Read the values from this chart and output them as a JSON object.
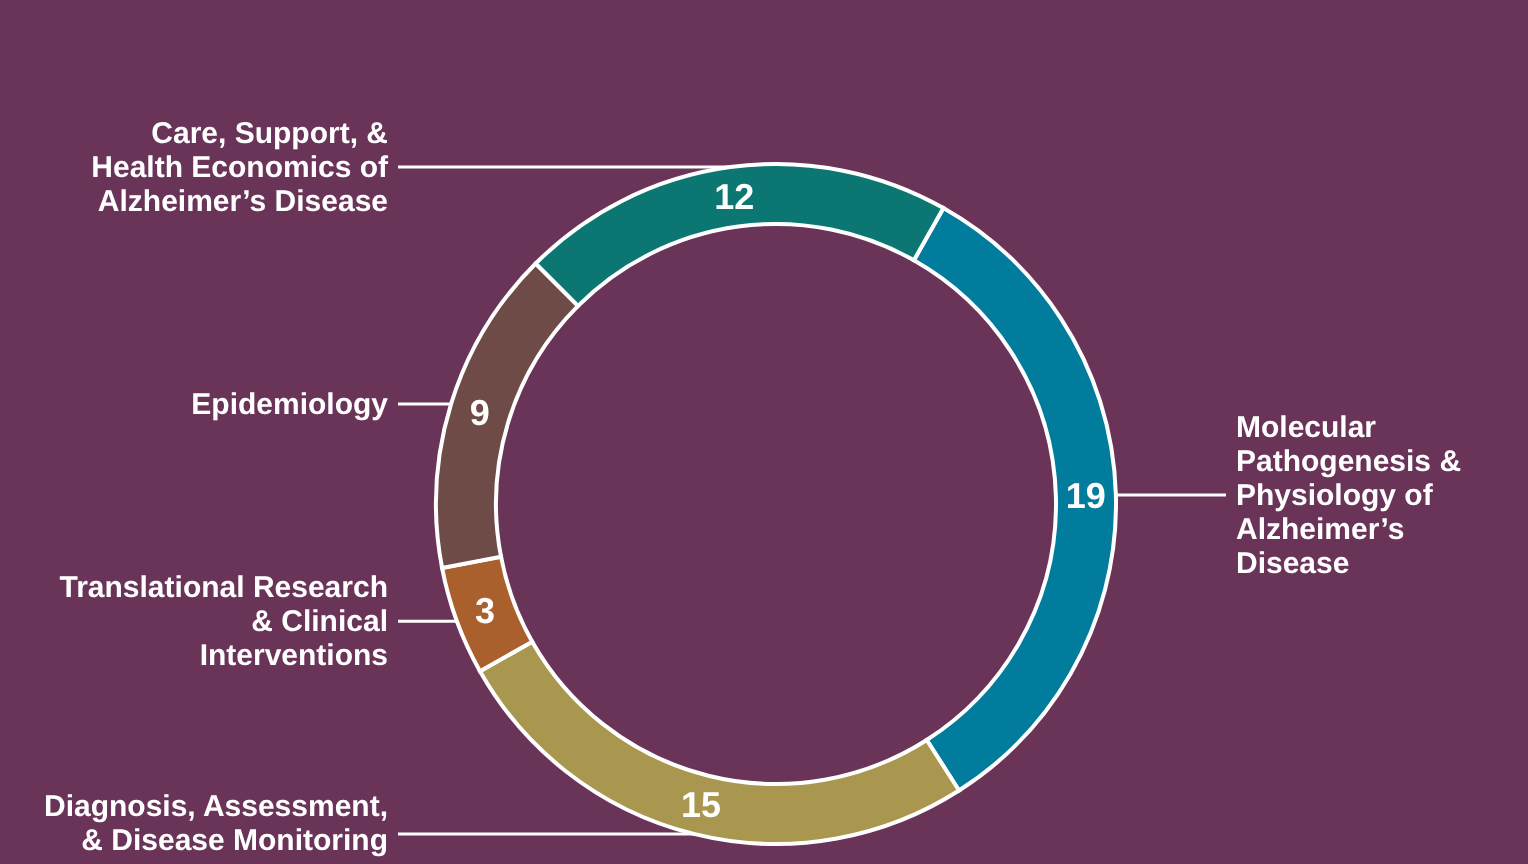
{
  "chart_data": {
    "type": "donut",
    "categories": [
      "Molecular Pathogenesis & Physiology of Alzheimer’s Disease",
      "Diagnosis, Assessment, & Disease Monitoring",
      "Translational Research & Clinical Interventions",
      "Epidemiology",
      "Care, Support, & Health Economics of Alzheimer’s Disease"
    ],
    "values": [
      19,
      15,
      3,
      9,
      12
    ],
    "colors": [
      "#027c9c",
      "#a9964f",
      "#a9602c",
      "#6f4b47",
      "#0b7672"
    ],
    "data_labels": true
  }
}
